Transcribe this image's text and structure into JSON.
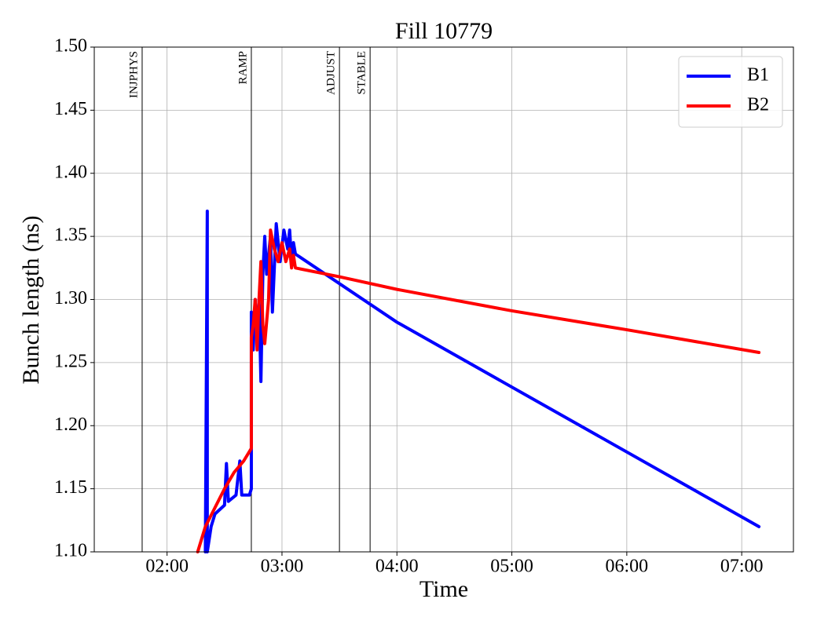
{
  "chart_data": {
    "type": "line",
    "title": "Fill 10779",
    "xlabel": "Time",
    "ylabel": "Bunch length (ns)",
    "xlim": [
      "01:22",
      "07:27"
    ],
    "xticks": [
      "02:00",
      "03:00",
      "04:00",
      "05:00",
      "06:00",
      "07:00"
    ],
    "ylim": [
      1.1,
      1.5
    ],
    "yticks": [
      {
        "value": 1.1,
        "label": "1.10"
      },
      {
        "value": 1.15,
        "label": "1.15"
      },
      {
        "value": 1.2,
        "label": "1.20"
      },
      {
        "value": 1.25,
        "label": "1.25"
      },
      {
        "value": 1.3,
        "label": "1.30"
      },
      {
        "value": 1.35,
        "label": "1.35"
      },
      {
        "value": 1.4,
        "label": "1.40"
      },
      {
        "value": 1.45,
        "label": "1.45"
      },
      {
        "value": 1.5,
        "label": "1.50"
      }
    ],
    "grid": true,
    "legend": "upper right",
    "annotations": [
      {
        "x": "01:47",
        "label": "INJPHYS"
      },
      {
        "x": "02:44",
        "label": "RAMP"
      },
      {
        "x": "03:30",
        "label": "ADJUST"
      },
      {
        "x": "03:46",
        "label": "STABLE"
      }
    ],
    "series": [
      {
        "name": "B1",
        "color": "#0000ff",
        "x": [
          "02:20",
          "02:21",
          "02:21",
          "02:23",
          "02:25",
          "02:30",
          "02:31",
          "02:32",
          "02:36",
          "02:38",
          "02:39",
          "02:43",
          "02:44",
          "02:44",
          "02:45",
          "02:46",
          "02:47",
          "02:48",
          "02:49",
          "02:50",
          "02:51",
          "02:52",
          "02:54",
          "02:55",
          "02:57",
          "02:59",
          "03:01",
          "03:03",
          "03:04",
          "03:05",
          "03:06",
          "03:07",
          "04:00",
          "07:09"
        ],
        "values": [
          1.1,
          1.37,
          1.1,
          1.12,
          1.13,
          1.137,
          1.17,
          1.14,
          1.145,
          1.172,
          1.145,
          1.145,
          1.15,
          1.29,
          1.26,
          1.3,
          1.27,
          1.3,
          1.235,
          1.32,
          1.35,
          1.32,
          1.35,
          1.29,
          1.36,
          1.33,
          1.355,
          1.34,
          1.355,
          1.33,
          1.345,
          1.336,
          1.282,
          1.12
        ]
      },
      {
        "name": "B2",
        "color": "#ff0000",
        "x": [
          "02:16",
          "02:20",
          "02:25",
          "02:30",
          "02:35",
          "02:40",
          "02:44",
          "02:44",
          "02:45",
          "02:46",
          "02:47",
          "02:48",
          "02:49",
          "02:50",
          "02:51",
          "02:53",
          "02:54",
          "02:56",
          "02:58",
          "03:00",
          "03:02",
          "03:04",
          "03:05",
          "03:06",
          "03:07",
          "03:30",
          "04:00",
          "05:00",
          "06:00",
          "07:09"
        ],
        "values": [
          1.1,
          1.12,
          1.135,
          1.15,
          1.163,
          1.172,
          1.182,
          1.27,
          1.28,
          1.3,
          1.26,
          1.3,
          1.33,
          1.28,
          1.265,
          1.3,
          1.355,
          1.34,
          1.33,
          1.345,
          1.33,
          1.34,
          1.325,
          1.335,
          1.325,
          1.318,
          1.308,
          1.291,
          1.276,
          1.258
        ]
      }
    ]
  }
}
